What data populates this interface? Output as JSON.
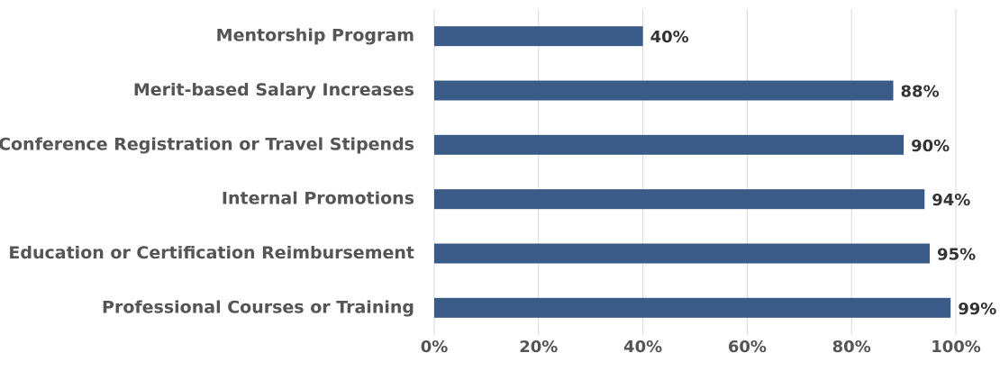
{
  "chart_data": {
    "type": "bar",
    "orientation": "horizontal",
    "categories": [
      "Mentorship Program",
      "Merit-based Salary Increases",
      "Conference Registration or Travel Stipends",
      "Internal Promotions",
      "Education or Certification Reimbursement",
      "Professional Courses or Training"
    ],
    "values": [
      40,
      88,
      90,
      94,
      95,
      99
    ],
    "value_labels": [
      "40%",
      "88%",
      "90%",
      "94%",
      "95%",
      "99%"
    ],
    "color": "#3a5a87",
    "xlim": [
      0,
      100
    ],
    "xticks": [
      {
        "value": 0,
        "label": "0%"
      },
      {
        "value": 20,
        "label": "20%"
      },
      {
        "value": 40,
        "label": "40%"
      },
      {
        "value": 60,
        "label": "60%"
      },
      {
        "value": 80,
        "label": "80%"
      },
      {
        "value": 100,
        "label": "100%"
      }
    ],
    "grid": true
  }
}
